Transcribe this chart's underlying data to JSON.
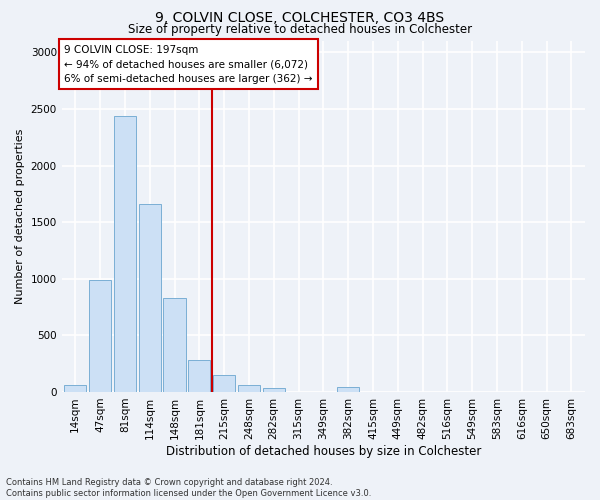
{
  "title1": "9, COLVIN CLOSE, COLCHESTER, CO3 4BS",
  "title2": "Size of property relative to detached houses in Colchester",
  "xlabel": "Distribution of detached houses by size in Colchester",
  "ylabel": "Number of detached properties",
  "footnote": "Contains HM Land Registry data © Crown copyright and database right 2024.\nContains public sector information licensed under the Open Government Licence v3.0.",
  "bar_labels": [
    "14sqm",
    "47sqm",
    "81sqm",
    "114sqm",
    "148sqm",
    "181sqm",
    "215sqm",
    "248sqm",
    "282sqm",
    "315sqm",
    "349sqm",
    "382sqm",
    "415sqm",
    "449sqm",
    "482sqm",
    "516sqm",
    "549sqm",
    "583sqm",
    "616sqm",
    "650sqm",
    "683sqm"
  ],
  "bar_values": [
    60,
    990,
    2440,
    1660,
    830,
    285,
    150,
    60,
    35,
    0,
    0,
    40,
    0,
    0,
    0,
    0,
    0,
    0,
    0,
    0,
    0
  ],
  "bar_color": "#cce0f5",
  "bar_edge_color": "#7aafd4",
  "vline_x": 5.5,
  "vline_color": "#cc0000",
  "annotation_lines": [
    "9 COLVIN CLOSE: 197sqm",
    "← 94% of detached houses are smaller (6,072)",
    "6% of semi-detached houses are larger (362) →"
  ],
  "annotation_box_color": "#ffffff",
  "annotation_box_edge": "#cc0000",
  "ylim": [
    0,
    3100
  ],
  "yticks": [
    0,
    500,
    1000,
    1500,
    2000,
    2500,
    3000
  ],
  "background_color": "#eef2f8",
  "grid_color": "#ffffff",
  "title1_fontsize": 10,
  "title2_fontsize": 8.5,
  "xlabel_fontsize": 8.5,
  "ylabel_fontsize": 8,
  "tick_fontsize": 7.5,
  "annot_fontsize": 7.5,
  "footnote_fontsize": 6
}
